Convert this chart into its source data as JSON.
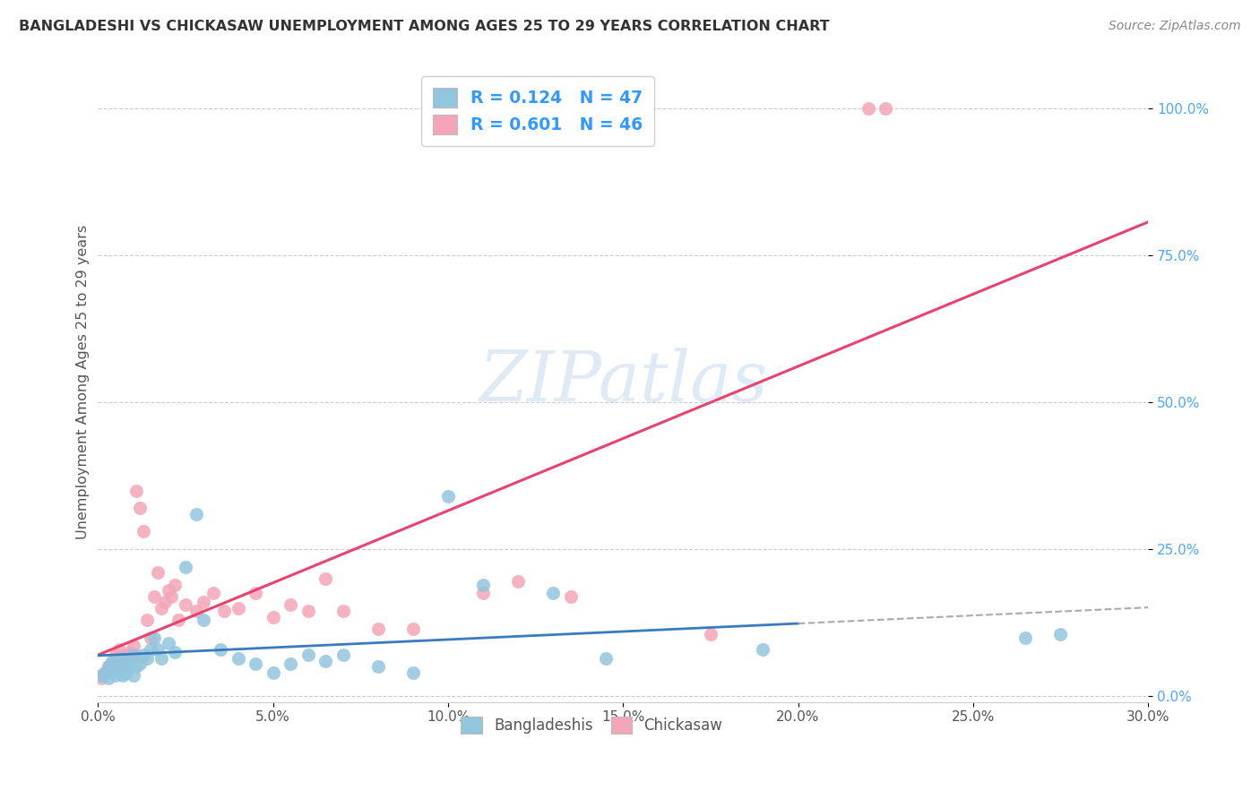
{
  "title": "BANGLADESHI VS CHICKASAW UNEMPLOYMENT AMONG AGES 25 TO 29 YEARS CORRELATION CHART",
  "source": "Source: ZipAtlas.com",
  "ylabel": "Unemployment Among Ages 25 to 29 years",
  "xlim": [
    0.0,
    0.3
  ],
  "ylim": [
    -0.01,
    1.08
  ],
  "xtick_labels": [
    "0.0%",
    "5.0%",
    "10.0%",
    "15.0%",
    "20.0%",
    "25.0%",
    "30.0%"
  ],
  "xtick_vals": [
    0.0,
    0.05,
    0.1,
    0.15,
    0.2,
    0.25,
    0.3
  ],
  "ytick_labels": [
    "0.0%",
    "25.0%",
    "50.0%",
    "75.0%",
    "100.0%"
  ],
  "ytick_vals": [
    0.0,
    0.25,
    0.5,
    0.75,
    1.0
  ],
  "bangladeshi_R": 0.124,
  "bangladeshi_N": 47,
  "chickasaw_R": 0.601,
  "chickasaw_N": 46,
  "blue_color": "#92c5de",
  "pink_color": "#f4a6b8",
  "blue_line_color": "#3a7abf",
  "pink_line_color": "#e8436e",
  "blue_line_slope": 0.05,
  "blue_line_intercept": 0.055,
  "pink_line_slope": 1.83,
  "pink_line_intercept": 0.01,
  "watermark_text": "ZIPatlas",
  "legend_label_blue": "Bangladeshis",
  "legend_label_pink": "Chickasaw",
  "bangladeshi_x": [
    0.001,
    0.002,
    0.003,
    0.003,
    0.004,
    0.004,
    0.005,
    0.005,
    0.006,
    0.006,
    0.007,
    0.007,
    0.008,
    0.008,
    0.009,
    0.01,
    0.01,
    0.011,
    0.012,
    0.013,
    0.014,
    0.015,
    0.016,
    0.017,
    0.018,
    0.02,
    0.022,
    0.025,
    0.028,
    0.03,
    0.035,
    0.04,
    0.045,
    0.05,
    0.055,
    0.06,
    0.065,
    0.07,
    0.08,
    0.09,
    0.1,
    0.11,
    0.13,
    0.145,
    0.19,
    0.265,
    0.275
  ],
  "bangladeshi_y": [
    0.035,
    0.04,
    0.03,
    0.05,
    0.04,
    0.06,
    0.035,
    0.055,
    0.04,
    0.06,
    0.035,
    0.065,
    0.04,
    0.05,
    0.06,
    0.035,
    0.07,
    0.05,
    0.055,
    0.07,
    0.065,
    0.08,
    0.1,
    0.08,
    0.065,
    0.09,
    0.075,
    0.22,
    0.31,
    0.13,
    0.08,
    0.065,
    0.055,
    0.04,
    0.055,
    0.07,
    0.06,
    0.07,
    0.05,
    0.04,
    0.34,
    0.19,
    0.175,
    0.065,
    0.08,
    0.1,
    0.105
  ],
  "chickasaw_x": [
    0.001,
    0.002,
    0.003,
    0.004,
    0.005,
    0.005,
    0.006,
    0.006,
    0.007,
    0.008,
    0.009,
    0.01,
    0.01,
    0.011,
    0.012,
    0.013,
    0.014,
    0.015,
    0.016,
    0.017,
    0.018,
    0.019,
    0.02,
    0.021,
    0.022,
    0.023,
    0.025,
    0.028,
    0.03,
    0.033,
    0.036,
    0.04,
    0.045,
    0.05,
    0.055,
    0.06,
    0.065,
    0.07,
    0.08,
    0.09,
    0.11,
    0.12,
    0.135,
    0.175,
    0.22,
    0.225
  ],
  "chickasaw_y": [
    0.03,
    0.04,
    0.05,
    0.055,
    0.06,
    0.07,
    0.065,
    0.08,
    0.06,
    0.07,
    0.075,
    0.07,
    0.085,
    0.35,
    0.32,
    0.28,
    0.13,
    0.1,
    0.17,
    0.21,
    0.15,
    0.16,
    0.18,
    0.17,
    0.19,
    0.13,
    0.155,
    0.145,
    0.16,
    0.175,
    0.145,
    0.15,
    0.175,
    0.135,
    0.155,
    0.145,
    0.2,
    0.145,
    0.115,
    0.115,
    0.175,
    0.195,
    0.17,
    0.105,
    1.0,
    1.0
  ]
}
